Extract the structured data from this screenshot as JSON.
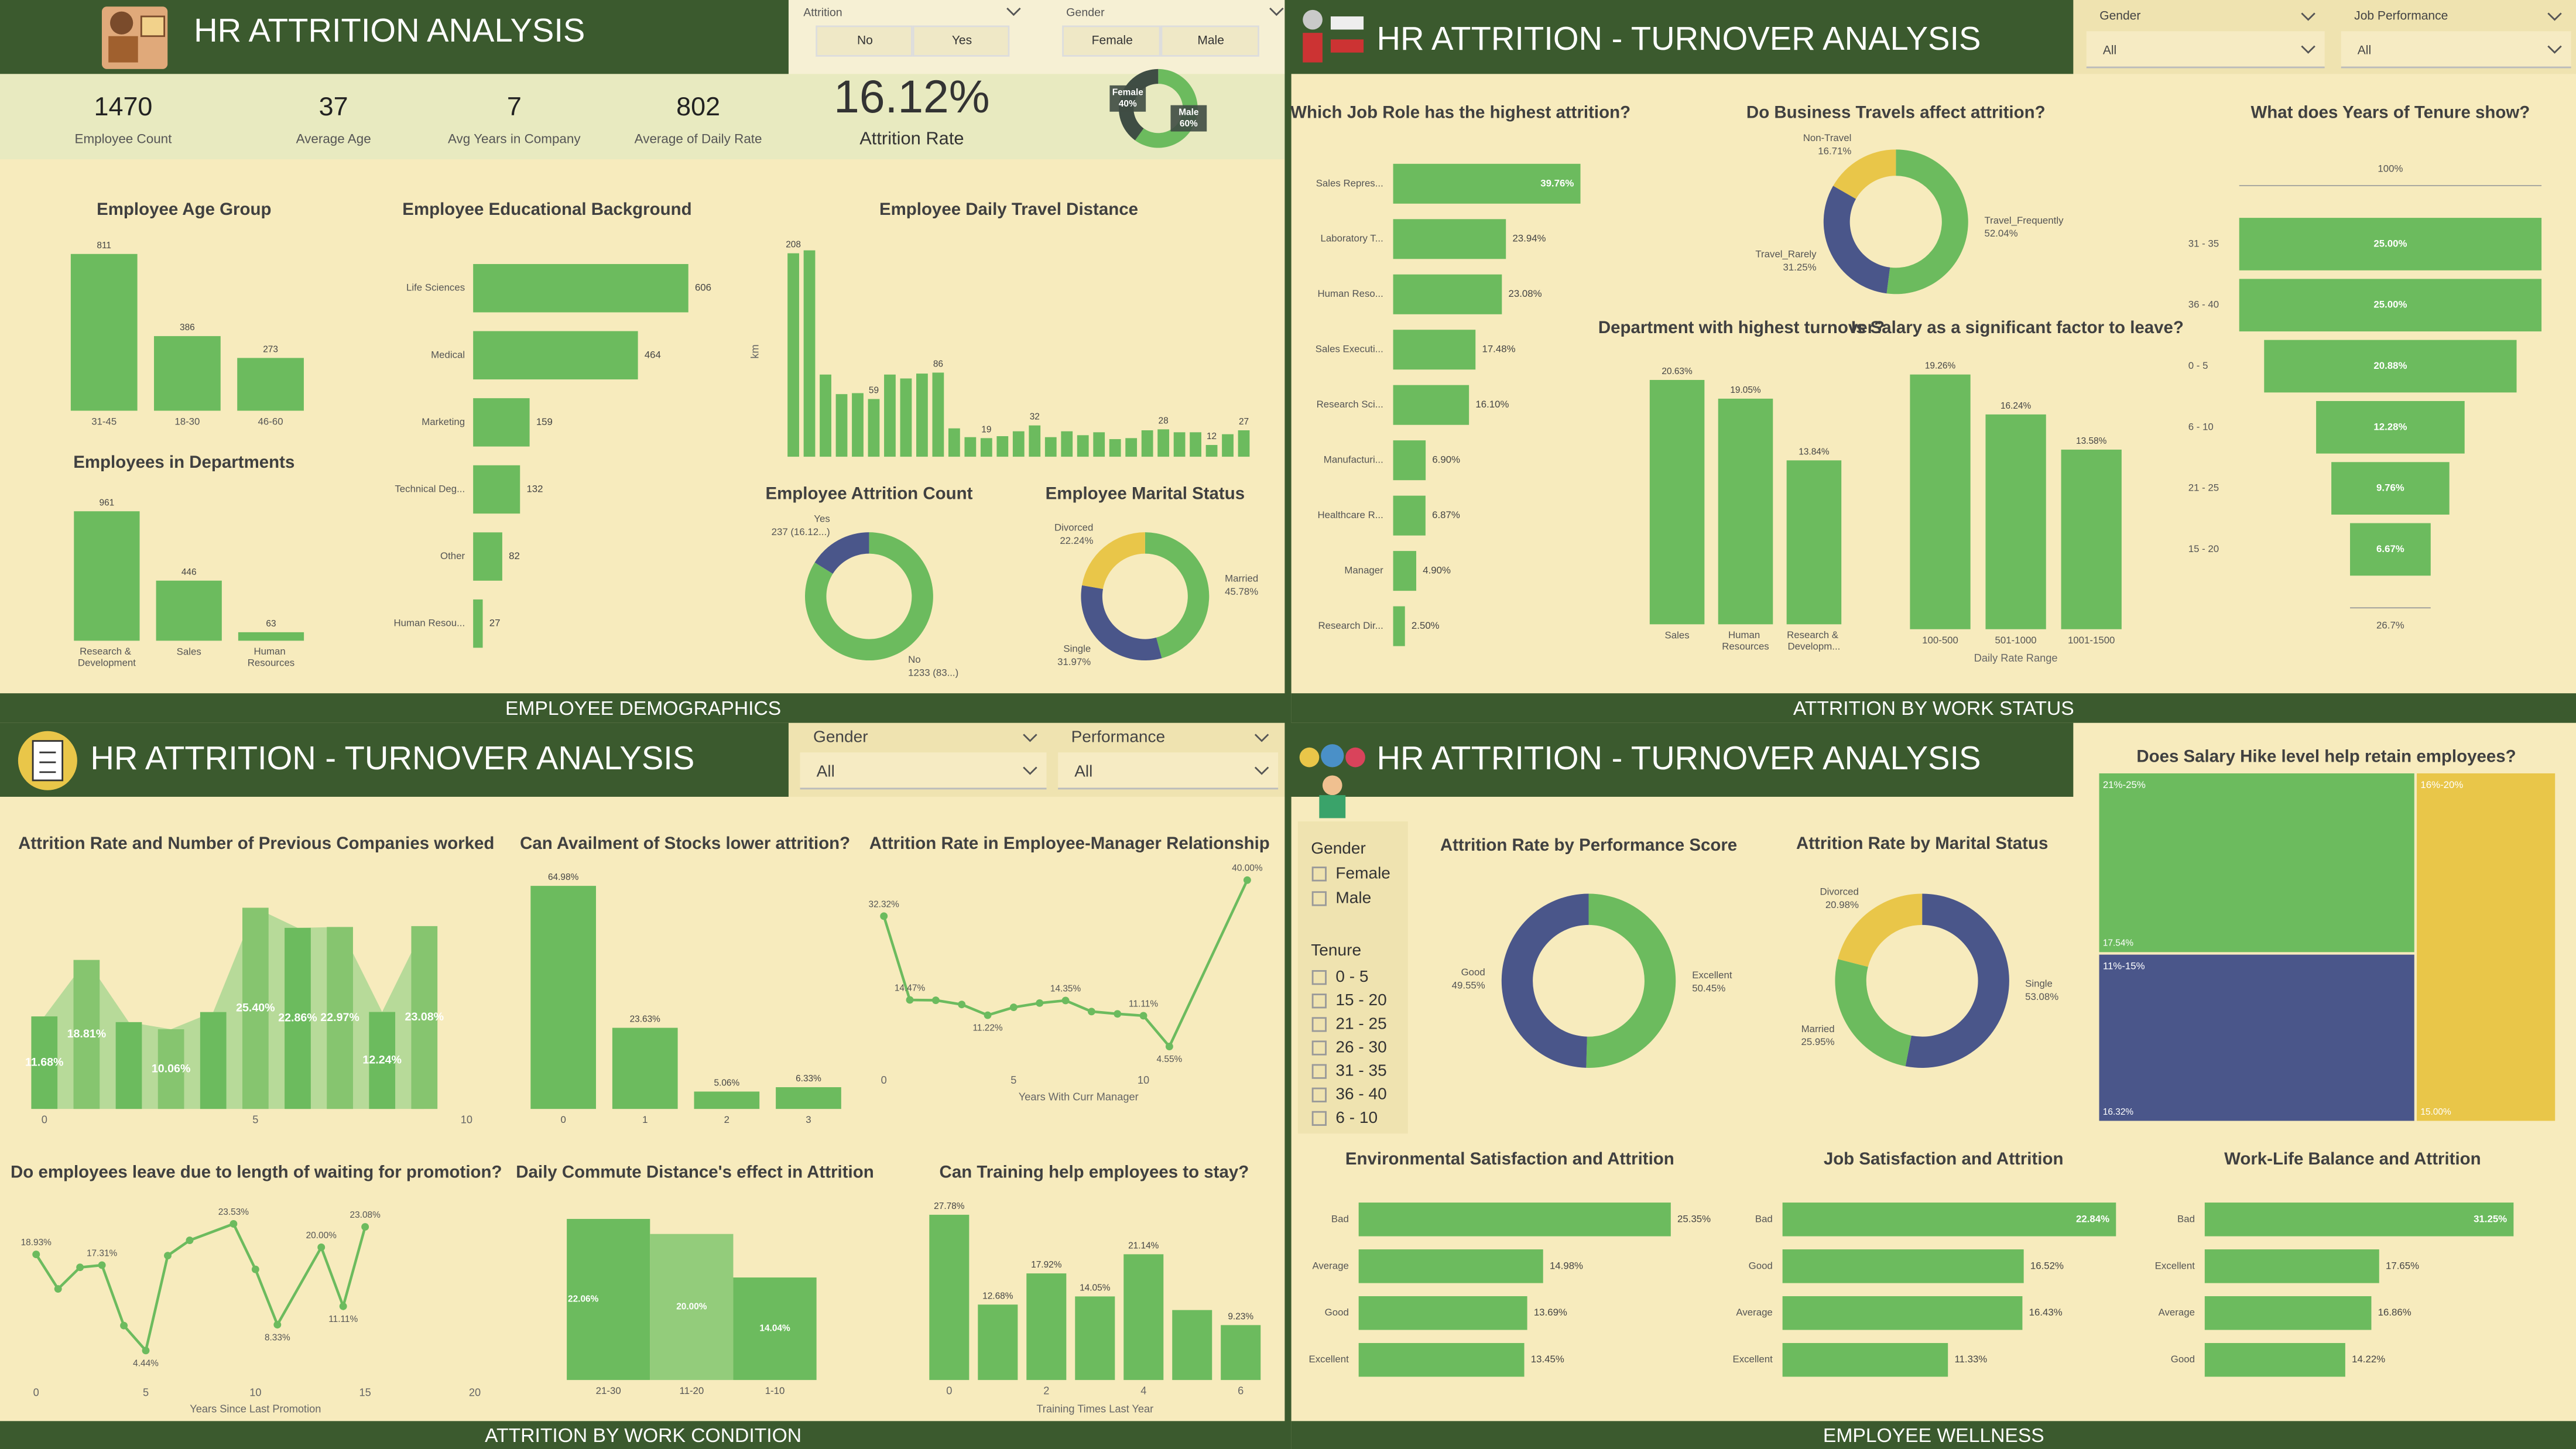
{
  "panels": [
    {
      "title": "HR ATTRITION ANALYSIS",
      "footer": "EMPLOYEE DEMOGRAPHICS"
    },
    {
      "title": "HR ATTRITION - TURNOVER ANALYSIS",
      "footer": "ATTRITION BY WORK STATUS"
    },
    {
      "title": "HR ATTRITION - TURNOVER ANALYSIS",
      "footer": "ATTRITION BY WORK CONDITION"
    },
    {
      "title": "HR ATTRITION - TURNOVER ANALYSIS",
      "footer": "EMPLOYEE WELLNESS"
    }
  ],
  "kpis": [
    {
      "value": "1470",
      "label": "Employee Count"
    },
    {
      "value": "37",
      "label": "Average Age"
    },
    {
      "value": "7",
      "label": "Avg Years in Company"
    },
    {
      "value": "802",
      "label": "Average of Daily Rate"
    },
    {
      "value": "16.12%",
      "label": "Attrition Rate"
    }
  ],
  "slicers": [
    {
      "title": "Attrition",
      "options": [
        "No",
        "Yes"
      ]
    },
    {
      "title": "Gender",
      "options": [
        "Female",
        "Male"
      ]
    },
    {
      "title": "Gender",
      "selected": "All"
    },
    {
      "title": "Job Performance",
      "selected": "All"
    },
    {
      "title": "Gender",
      "selected": "All"
    },
    {
      "title": "Performance",
      "selected": "All"
    },
    {
      "title": "Gender",
      "options": [
        "Female",
        "Male"
      ]
    },
    {
      "title": "Tenure",
      "options": [
        "0 - 5",
        "15 - 20",
        "21 - 25",
        "26 - 30",
        "31 - 35",
        "36 - 40",
        "6 - 10"
      ]
    }
  ],
  "chart_data": [
    {
      "type": "bar",
      "title": "Employee Age Group",
      "categories": [
        "31-45",
        "18-30",
        "46-60"
      ],
      "values": [
        811,
        386,
        273
      ],
      "ylim": [
        0,
        850
      ],
      "color": "#6cbb5e"
    },
    {
      "type": "bar",
      "title": "Employees in Departments",
      "categories": [
        "Research & Development",
        "Sales",
        "Human Resources"
      ],
      "values": [
        961,
        446,
        63
      ],
      "ylim": [
        0,
        1000
      ],
      "color": "#6cbb5e"
    },
    {
      "type": "bar",
      "orientation": "horizontal",
      "title": "Employee Educational Background",
      "categories": [
        "Life Sciences",
        "Medical",
        "Marketing",
        "Technical Deg...",
        "Other",
        "Human Resou..."
      ],
      "values": [
        606,
        464,
        159,
        132,
        82,
        27
      ],
      "xlim": [
        0,
        650
      ],
      "color": "#6cbb5e"
    },
    {
      "type": "bar",
      "title": "Employee Daily Travel Distance",
      "y_label": "km",
      "values": [
        208,
        211,
        84,
        64,
        65,
        59,
        84,
        80,
        85,
        86,
        29,
        20,
        19,
        21,
        26,
        32,
        20,
        26,
        22,
        25,
        18,
        19,
        27,
        28,
        25,
        25,
        12,
        23,
        27
      ],
      "value_labels": [
        208,
        null,
        null,
        null,
        null,
        59,
        null,
        null,
        null,
        86,
        null,
        null,
        19,
        null,
        null,
        32,
        null,
        null,
        null,
        null,
        null,
        null,
        null,
        28,
        null,
        null,
        12,
        null,
        27
      ],
      "ylim": [
        0,
        215
      ],
      "color": "#6cbb5e"
    },
    {
      "type": "donut",
      "title": "Employee Attrition Count",
      "categories": [
        "No",
        "Yes"
      ],
      "values": [
        1233,
        237
      ],
      "value_labels": [
        "1233 (83...)",
        "237 (16.12...)"
      ],
      "colors": [
        "#6cbb5e",
        "#4a568a"
      ]
    },
    {
      "type": "donut",
      "title": "Employee Marital Status",
      "categories": [
        "Married",
        "Single",
        "Divorced"
      ],
      "values": [
        45.78,
        31.97,
        22.24
      ],
      "value_labels": [
        "45.78%",
        "31.97%",
        "22.24%"
      ],
      "colors": [
        "#6cbb5e",
        "#4a568a",
        "#e9c649"
      ]
    },
    {
      "type": "bar",
      "orientation": "horizontal",
      "title": "Which Job Role has the highest attrition?",
      "categories": [
        "Sales Repres...",
        "Laboratory T...",
        "Human Reso...",
        "Sales Executi...",
        "Research Sci...",
        "Manufacturi...",
        "Healthcare R...",
        "Manager",
        "Research Dir..."
      ],
      "values": [
        39.76,
        23.94,
        23.08,
        17.48,
        16.1,
        6.9,
        6.87,
        4.9,
        2.5
      ],
      "value_labels": [
        "39.76%",
        "23.94%",
        "23.08%",
        "17.48%",
        "16.10%",
        "6.90%",
        "6.87%",
        "4.90%",
        "2.50%"
      ],
      "xlim": [
        0,
        40
      ],
      "color": "#6cbb5e"
    },
    {
      "type": "donut",
      "title": "Do Business Travels affect attrition?",
      "categories": [
        "Travel_Frequently",
        "Travel_Rarely",
        "Non-Travel"
      ],
      "values": [
        52.04,
        31.25,
        16.71
      ],
      "value_labels": [
        "52.04%",
        "31.25%",
        "16.71%"
      ],
      "colors": [
        "#6cbb5e",
        "#4a568a",
        "#e9c649"
      ]
    },
    {
      "type": "funnel",
      "title": "What does Years of Tenure show?",
      "categories": [
        "31 - 35",
        "36 - 40",
        "0 - 5",
        "6 - 10",
        "21 - 25",
        "15 - 20"
      ],
      "values": [
        25.0,
        25.0,
        20.88,
        12.28,
        9.76,
        6.67
      ],
      "value_labels": [
        "25.00%",
        "25.00%",
        "20.88%",
        "12.28%",
        "9.76%",
        "6.67%"
      ],
      "top_label": "100%",
      "bottom_label": "26.7%",
      "color": "#6cbb5e"
    },
    {
      "type": "bar",
      "title": "Department with highest turnover?",
      "categories": [
        "Sales",
        "Human Resources",
        "Research & Developm..."
      ],
      "values": [
        20.63,
        19.05,
        13.84
      ],
      "value_labels": [
        "20.63%",
        "19.05%",
        "13.84%"
      ],
      "ylim": [
        0,
        21.5
      ],
      "color": "#6cbb5e"
    },
    {
      "type": "bar",
      "title": "Is Salary as a significant factor to leave?",
      "x_label": "Daily Rate Range",
      "categories": [
        "100-500",
        "501-1000",
        "1001-1500"
      ],
      "values": [
        19.26,
        16.24,
        13.58
      ],
      "value_labels": [
        "19.26%",
        "16.24%",
        "13.58%"
      ],
      "ylim": [
        0,
        20
      ],
      "color": "#6cbb5e"
    },
    {
      "type": "bar",
      "title": "Attrition Rate and Number of Previous Companies worked",
      "x": [
        0,
        1,
        2,
        3,
        4,
        5,
        6,
        7,
        8,
        9
      ],
      "values": [
        11.68,
        18.81,
        10.96,
        10.06,
        12.23,
        25.4,
        22.86,
        22.97,
        12.24,
        23.08
      ],
      "value_labels": [
        "11.68%",
        "18.81%",
        null,
        "10.06%",
        null,
        "25.40%",
        "22.86%",
        "22.97%",
        "12.24%",
        "23.08%"
      ],
      "xlim": [
        0,
        10
      ],
      "xticks": [
        0,
        5,
        10
      ],
      "ylim": [
        0,
        28
      ],
      "colors": [
        "#6cbb5e",
        "#86c56f"
      ]
    },
    {
      "type": "bar",
      "title": "Can Availment of Stocks lower attrition?",
      "categories": [
        "0",
        "1",
        "2",
        "3"
      ],
      "values": [
        64.98,
        23.63,
        5.06,
        6.33
      ],
      "value_labels": [
        "64.98%",
        "23.63%",
        "5.06%",
        "6.33%"
      ],
      "ylim": [
        0,
        67
      ],
      "color": "#6cbb5e"
    },
    {
      "type": "line",
      "title": "Attrition Rate in Employee-Manager Relationship",
      "x_label": "Years With Curr Manager",
      "x": [
        0,
        1,
        2,
        3,
        4,
        5,
        6,
        7,
        8,
        9,
        10,
        11,
        14
      ],
      "values": [
        32.32,
        14.47,
        14.4,
        13.5,
        11.22,
        12.9,
        13.8,
        14.35,
        12.0,
        11.5,
        11.11,
        4.55,
        40.0
      ],
      "value_labels": [
        "32.32%",
        "14.47%",
        null,
        null,
        "11.22%",
        null,
        null,
        "14.35%",
        null,
        null,
        "11.11%",
        "4.55%",
        "40.00%"
      ],
      "xlim": [
        0,
        15
      ],
      "xticks": [
        0,
        5,
        10
      ],
      "ylim": [
        0,
        42
      ],
      "color": "#6cbb5e"
    },
    {
      "type": "line",
      "title": "Do employees leave due to length of waiting for promotion?",
      "x_label": "Years Since Last Promotion",
      "x": [
        0,
        1,
        2,
        3,
        4,
        5,
        6,
        7,
        9,
        10,
        11,
        13,
        14,
        15
      ],
      "values": [
        18.93,
        13.73,
        16.98,
        17.31,
        8.2,
        4.44,
        18.75,
        21.05,
        23.53,
        16.67,
        8.33,
        20.0,
        11.11,
        23.08
      ],
      "value_labels": [
        "18.93%",
        null,
        null,
        "17.31%",
        null,
        "4.44%",
        null,
        null,
        "23.53%",
        null,
        "8.33%",
        "20.00%",
        "11.11%",
        "23.08%"
      ],
      "xlim": [
        0,
        20
      ],
      "xticks": [
        0,
        5,
        10,
        15,
        20
      ],
      "ylim": [
        0,
        26
      ],
      "color": "#6cbb5e"
    },
    {
      "type": "area",
      "title": "Daily Commute Distance's effect in Attrition",
      "categories": [
        "21-30",
        "11-20",
        "1-10"
      ],
      "values": [
        22.06,
        20.0,
        14.04
      ],
      "value_labels": [
        "22.06%",
        "20.00%",
        "14.04%"
      ],
      "ylim": [
        0,
        22.5
      ],
      "colors": [
        "#6cbb5e",
        "#93cc7b",
        "#6cbb5e"
      ]
    },
    {
      "type": "bar",
      "title": "Can Training help employees to stay?",
      "x_label": "Training Times Last Year",
      "x": [
        0,
        1,
        2,
        3,
        4,
        5,
        6
      ],
      "values": [
        27.78,
        12.68,
        17.92,
        14.05,
        21.14,
        11.76,
        9.23
      ],
      "value_labels": [
        "27.78%",
        "12.68%",
        "17.92%",
        "14.05%",
        "21.14%",
        null,
        "9.23%"
      ],
      "xlim": [
        -0.5,
        6.5
      ],
      "xticks": [
        0,
        2,
        4,
        6
      ],
      "ylim": [
        0,
        29
      ],
      "color": "#6cbb5e"
    },
    {
      "type": "donut",
      "title": "Attrition Rate by Performance Score",
      "categories": [
        "Excellent",
        "Good"
      ],
      "values": [
        50.45,
        49.55
      ],
      "value_labels": [
        "50.45%",
        "49.55%"
      ],
      "colors": [
        "#6cbb5e",
        "#4a568a"
      ]
    },
    {
      "type": "donut",
      "title": "Attrition Rate by Marital Status",
      "categories": [
        "Single",
        "Married",
        "Divorced"
      ],
      "values": [
        53.08,
        25.95,
        20.98
      ],
      "value_labels": [
        "53.08%",
        "25.95%",
        "20.98%"
      ],
      "colors": [
        "#4a568a",
        "#6cbb5e",
        "#e9c649"
      ]
    },
    {
      "type": "treemap",
      "title": "Does Salary Hike level help retain employees?",
      "categories": [
        "21%-25%",
        "11%-15%",
        "16%-20%"
      ],
      "values": [
        17.54,
        16.32,
        15.0
      ],
      "value_labels": [
        "17.54%",
        "16.32%",
        "15.00%"
      ],
      "colors": [
        "#6cbb5e",
        "#4a568a",
        "#e9c649"
      ]
    },
    {
      "type": "bar",
      "orientation": "horizontal",
      "title": "Environmental Satisfaction and Attrition",
      "categories": [
        "Bad",
        "Average",
        "Good",
        "Excellent"
      ],
      "values": [
        25.35,
        14.98,
        13.69,
        13.45
      ],
      "value_labels": [
        "25.35%",
        "14.98%",
        "13.69%",
        "13.45%"
      ],
      "xlim": [
        0,
        25.35
      ],
      "color": "#6cbb5e"
    },
    {
      "type": "bar",
      "orientation": "horizontal",
      "title": "Job Satisfaction and Attrition",
      "categories": [
        "Bad",
        "Good",
        "Average",
        "Excellent"
      ],
      "values": [
        22.84,
        16.52,
        16.43,
        11.33
      ],
      "value_labels": [
        "22.84%",
        "16.52%",
        "16.43%",
        "11.33%"
      ],
      "xlim": [
        0,
        22.84
      ],
      "color": "#6cbb5e"
    },
    {
      "type": "bar",
      "orientation": "horizontal",
      "title": "Work-Life Balance and Attrition",
      "categories": [
        "Bad",
        "Excellent",
        "Average",
        "Good"
      ],
      "values": [
        31.25,
        17.65,
        16.86,
        14.22
      ],
      "value_labels": [
        "31.25%",
        "17.65%",
        "16.86%",
        "14.22%"
      ],
      "xlim": [
        0,
        31.25
      ],
      "color": "#6cbb5e"
    },
    {
      "type": "donut",
      "categories": [
        "Male",
        "Female"
      ],
      "values": [
        60,
        40
      ],
      "value_labels": [
        "60%",
        "40%"
      ],
      "colors": [
        "#6cbb5e",
        "#3f4d44"
      ]
    }
  ]
}
